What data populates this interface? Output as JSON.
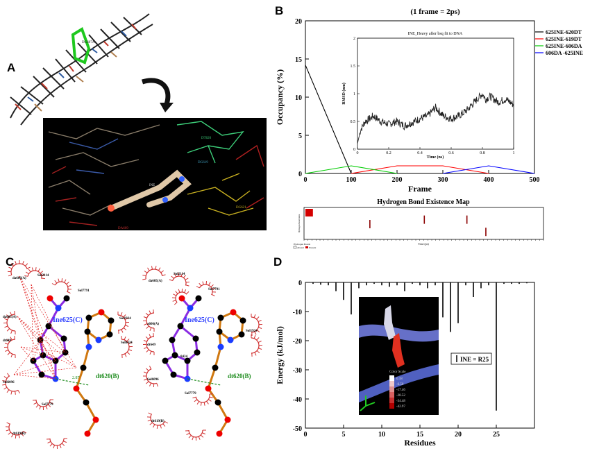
{
  "panels": {
    "A": "A",
    "B": "B",
    "C": "C",
    "D": "D"
  },
  "panel_a": {
    "dna_labels": [
      "DG607A",
      "DT620",
      "DG621",
      "DA609",
      "DG619",
      "DG618"
    ],
    "ligand_label": "INE",
    "arrow_icon": "curved-arrow"
  },
  "chart_data": [
    {
      "type": "line",
      "title": "(1 frame = 2ps)",
      "xlabel": "Frame",
      "ylabel": "Occupancy (%)",
      "xlim": [
        0,
        500
      ],
      "ylim": [
        0,
        20
      ],
      "xticks": [
        0,
        100,
        200,
        300,
        400,
        500
      ],
      "yticks": [
        0,
        5,
        10,
        15,
        20
      ],
      "legend_position": "top-right",
      "series": [
        {
          "name": "625INE-620DT",
          "color": "#000000",
          "x": [
            0,
            100
          ],
          "y": [
            14.2,
            0
          ]
        },
        {
          "name": "625INE-619DT",
          "color": "#ff0000",
          "x": [
            100,
            200,
            300,
            400
          ],
          "y": [
            0,
            1,
            1,
            0
          ]
        },
        {
          "name": "625INE-606DA",
          "color": "#00cc00",
          "x": [
            0,
            100,
            200
          ],
          "y": [
            0,
            1,
            0
          ]
        },
        {
          "name": "606DA -625INE",
          "color": "#0000ff",
          "x": [
            300,
            400,
            500
          ],
          "y": [
            0,
            1,
            0
          ]
        }
      ],
      "inset": {
        "type": "line",
        "title": "INE_Heavy after bsq fit to DNA",
        "xlabel": "Time (ns)",
        "ylabel": "RMSD (nm)",
        "xlim": [
          0,
          1
        ],
        "ylim": [
          0,
          2
        ],
        "xticks": [
          "0",
          "0.2",
          "0.4",
          "0.6",
          "0.8",
          "1"
        ],
        "yticks": [
          "0",
          "0.5",
          "1",
          "1.5",
          "2"
        ],
        "x": [
          0,
          0.02,
          0.05,
          0.08,
          0.1,
          0.15,
          0.2,
          0.25,
          0.3,
          0.35,
          0.4,
          0.45,
          0.5,
          0.55,
          0.6,
          0.65,
          0.7,
          0.75,
          0.8,
          0.82,
          0.85,
          0.9,
          0.95,
          1.0
        ],
        "y": [
          0.1,
          0.35,
          0.5,
          0.55,
          0.6,
          0.5,
          0.45,
          0.5,
          0.42,
          0.48,
          0.55,
          0.6,
          0.75,
          0.6,
          0.55,
          0.6,
          0.7,
          0.85,
          1.0,
          0.9,
          0.95,
          0.85,
          0.9,
          0.8
        ]
      }
    },
    {
      "type": "heatmap",
      "title": "Hydrogen Bond Existence Map",
      "xlabel": "Time (ps)",
      "ylabel": "Hydrogen Bond Index",
      "legend": [
        "Hydrogen Bonds",
        "Absent",
        "Present"
      ],
      "present_marks": [
        {
          "t": 0.0,
          "row": 0.0
        },
        {
          "t": 0.01,
          "row": 0.0
        },
        {
          "t": 0.02,
          "row": 0.0
        },
        {
          "t": 0.27,
          "row": 0.5
        },
        {
          "t": 0.5,
          "row": 0.3
        },
        {
          "t": 0.68,
          "row": 0.3
        },
        {
          "t": 0.76,
          "row": 0.85
        }
      ]
    },
    {
      "type": "bar",
      "xlabel": "Residues",
      "ylabel": "Energy (kJ/mol)",
      "xlim": [
        0,
        30
      ],
      "ylim": [
        -50,
        0
      ],
      "xticks": [
        0,
        5,
        10,
        15,
        20,
        25
      ],
      "yticks": [
        0,
        -10,
        -20,
        -30,
        -40,
        -50
      ],
      "legend": "INE = R25",
      "legend_position": "right",
      "x": [
        1,
        2,
        3,
        4,
        5,
        6,
        7,
        8,
        9,
        10,
        11,
        12,
        13,
        14,
        15,
        16,
        17,
        18,
        19,
        20,
        21,
        22,
        23,
        24,
        25,
        26,
        27,
        28,
        29
      ],
      "values": [
        -0.5,
        -0.8,
        -1,
        -3,
        -6,
        -11,
        -2,
        -1,
        -0.5,
        -1,
        -1.5,
        -1,
        -3,
        -0.5,
        -1,
        -2,
        -1,
        -12,
        -17,
        -14,
        -1,
        -5,
        -2,
        -1,
        -44,
        -0.5,
        -0.5,
        -0.5,
        -0.3
      ],
      "inset_colorbar": {
        "title": "Color Scale",
        "labels": [
          "0.18",
          "-6.50",
          "-17.46",
          "-28.52",
          "-34.48",
          "-42.97"
        ]
      }
    }
  ],
  "panel_c": {
    "left": {
      "ligand": "Ine625(C)",
      "dna_residue": "dt620(B)",
      "distance": "2.87",
      "labels": [
        "da606(A)",
        "Sol2114",
        "Sol7791",
        "da605(A)",
        "Sol1924",
        "dt649",
        "Sol8424",
        "Sol6096",
        "Sol7779",
        "dt619(B)"
      ]
    },
    "right": {
      "ligand": "Ine625(C)",
      "dna_residue": "dt620(B)",
      "labels": [
        "da605(A)",
        "Sol2114",
        "Sol7791",
        "a606(A)",
        "Sol1924",
        "dt649",
        "8424",
        "Sol6096",
        "Sol7779",
        "dt619(B)"
      ]
    }
  }
}
